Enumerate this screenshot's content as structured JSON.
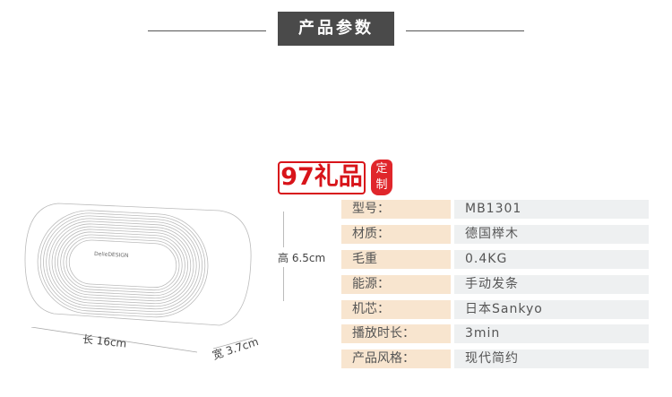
{
  "header": {
    "title": "产品参数"
  },
  "brand": {
    "logo_text": "97礼品",
    "seal_text": "定制",
    "speaker_brand": "DelieDESIGN"
  },
  "dimensions": {
    "height": "高 6.5cm",
    "length": "长 16cm",
    "width": "宽 3.7cm"
  },
  "specs": [
    {
      "label": "型号：",
      "value": "MB1301"
    },
    {
      "label": "材质：",
      "value": "德国榉木"
    },
    {
      "label": "毛重",
      "value": "0.4KG"
    },
    {
      "label": "能源：",
      "value": "手动发条"
    },
    {
      "label": "机芯：",
      "value": "日本Sankyo"
    },
    {
      "label": "播放时长：",
      "value": "3min"
    },
    {
      "label": "产品风格：",
      "value": "现代简约"
    }
  ],
  "colors": {
    "label_bg": "#f8e5cf",
    "value_bg": "#eef0f1",
    "title_bg": "#4a4a4a",
    "logo_red": "#d8141a"
  }
}
